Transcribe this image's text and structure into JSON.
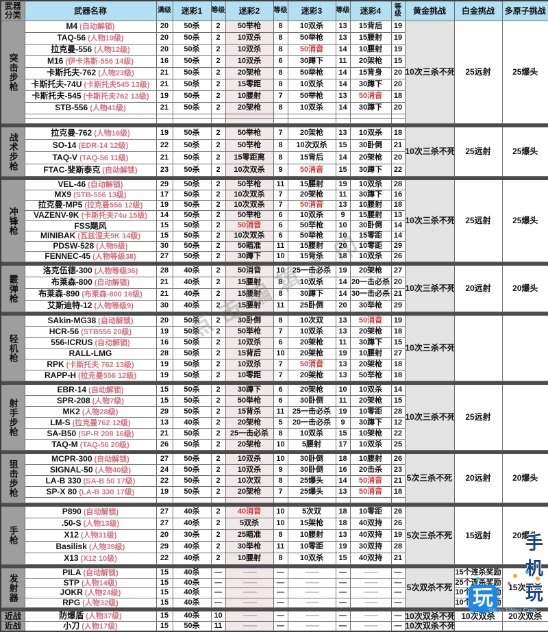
{
  "header": {
    "corner": "武器分类",
    "columns": [
      "武器名称",
      "满级",
      "迷彩1",
      "等级",
      "迷彩2",
      "等级",
      "迷彩3",
      "等级",
      "迷彩4",
      "等级",
      "黄金挑战",
      "白金挑战",
      "多原子挑战"
    ]
  },
  "colors": {
    "header_bg": "#b3dff2",
    "category_bg": "#9e9e9e",
    "gold_col_bg": "#e3e3e3",
    "camo2_col_bg": "#f1e9e9",
    "note_pink": "#d4707e",
    "red_camo": "#d93636",
    "separator": "#4c4c4c"
  },
  "watermark": {
    "diagonal": "点击编辑水印",
    "logo_char": "玩",
    "brand": "手机玩",
    "site": "ShouJiWan.Com"
  },
  "sections": [
    {
      "category": "突击步枪",
      "gold": "10次三杀不死",
      "platinum": "25远射",
      "poly": "25爆头",
      "rows": [
        {
          "name": "M4",
          "note": "(自动解锁)",
          "max": "20",
          "c1": "50杀",
          "l1": "2",
          "c2": "50举枪",
          "l2": "8",
          "c3": "10双杀",
          "l3": "13",
          "c4": "15背后",
          "l4": "19"
        },
        {
          "name": "TAQ-56",
          "note": "(人物19级)",
          "max": "20",
          "c1": "50杀",
          "l1": "2",
          "c2": "10双杀",
          "l2": "8",
          "c3": "50举枪",
          "l3": "13",
          "c4": "15腰射",
          "l4": "19"
        },
        {
          "name": "拉克曼-556",
          "note": "(人物12级)",
          "max": "20",
          "c1": "50杀",
          "l1": "2",
          "c2": "10双杀",
          "l2": "8",
          "c3": "50消音",
          "l3": "14",
          "c4": "10腰射",
          "l4": "19",
          "red": [
            "c3"
          ]
        },
        {
          "name": "M16",
          "note": "(伊卡洛斯-556 14级)",
          "max": "16",
          "c1": "50杀",
          "l1": "2",
          "c2": "10双杀",
          "l2": "6",
          "c3": "30蹲下",
          "l3": "11",
          "c4": "20架枪",
          "l4": "15"
        },
        {
          "name": "卡斯托夫-762",
          "note": "(人物23级)",
          "max": "21",
          "c1": "50杀",
          "l1": "2",
          "c2": "20架枪",
          "l2": "8",
          "c3": "50举枪",
          "l3": "14",
          "c4": "15背身",
          "l4": "20"
        },
        {
          "name": "卡斯托夫-74U",
          "note": "(卡斯托夫545 13级)",
          "max": "21",
          "c1": "50杀",
          "l1": "2",
          "c2": "15零距",
          "l2": "8",
          "c3": "10双杀",
          "l3": "14",
          "c4": "30蹲下",
          "l4": "20"
        },
        {
          "name": "卡斯托夫-545",
          "note": "(卡斯托夫762 13级)",
          "max": "19",
          "c1": "50杀",
          "l1": "2",
          "c2": "10腰射",
          "l2": "7",
          "c3": "50举枪",
          "l3": "13",
          "c4": "50消音",
          "l4": "18",
          "red": [
            "c4"
          ]
        },
        {
          "name": "STB-556",
          "note": "(人物41级)",
          "max": "21",
          "c1": "50杀",
          "l1": "2",
          "c2": "20架枪",
          "l2": "8",
          "c3": "10双杀",
          "l3": "14",
          "c4": "30蹲下",
          "l4": "20"
        },
        {
          "empty": true
        },
        {
          "empty": true
        }
      ]
    },
    {
      "category": "战术步枪",
      "gold": "10次三杀不死",
      "platinum": "25远射",
      "poly": "25爆头",
      "rows": [
        {
          "name": "拉克曼-762",
          "note": "(人物16级)",
          "max": "19",
          "c1": "50杀",
          "l1": "2",
          "c2": "50举枪",
          "l2": "7",
          "c3": "20架枪",
          "l3": "13",
          "c4": "10双杀",
          "l4": "18"
        },
        {
          "name": "SO-14",
          "note": "(EDR-14 12级)",
          "max": "22",
          "c1": "50杀",
          "l1": "2",
          "c2": "50举枪",
          "l2": "8",
          "c3": "10次双杀",
          "l3": "15",
          "c4": "30卧倒",
          "l4": "21"
        },
        {
          "name": "TAQ-V",
          "note": "(TAQ-56 11级)",
          "max": "21",
          "c1": "50杀",
          "l1": "2",
          "c2": "15零距离",
          "l2": "8",
          "c3": "15背后",
          "l3": "14",
          "c4": "20架枪",
          "l4": "20"
        },
        {
          "name": "FTAC-斐斯泰克",
          "note": "(自动解锁)",
          "max": "23",
          "c1": "50杀",
          "l1": "2",
          "c2": "10次双杀",
          "l2": "9",
          "c3": "50消音",
          "l3": "15",
          "c4": "30蹲下",
          "l4": "22",
          "red": [
            "c3"
          ]
        }
      ]
    },
    {
      "category": "冲锋枪",
      "gold": "10次三杀不死",
      "platinum": "25远射",
      "poly": "25爆头",
      "rows": [
        {
          "name": "VEL-46",
          "note": "(自动解锁)",
          "max": "29",
          "c1": "50杀",
          "l1": "2",
          "c2": "50举枪",
          "l2": "11",
          "c3": "15腰射",
          "l3": "19",
          "c4": "10双杀",
          "l4": "28"
        },
        {
          "name": "MX9",
          "note": "(STB-556 13级)",
          "max": "17",
          "c1": "50杀",
          "l1": "2",
          "c2": "10次双杀",
          "l2": "7",
          "c3": "20架枪",
          "l3": "11",
          "c4": "30蹲下",
          "l4": "16"
        },
        {
          "name": "拉克曼-MP5",
          "note": "(拉克曼556 12级)",
          "max": "19",
          "c1": "50杀",
          "l1": "2",
          "c2": "10次双杀",
          "l2": "7",
          "c3": "50消音",
          "l3": "13",
          "c4": "10腰射",
          "l4": "18",
          "red": [
            "c3"
          ]
        },
        {
          "name": "VAZENV-9K",
          "note": "(卡斯托夫74u 15级)",
          "max": "14",
          "c1": "50杀",
          "l1": "2",
          "c2": "50举枪",
          "l2": "6",
          "c3": "10双杀",
          "l3": "9",
          "c4": "15腰射",
          "l4": "13"
        },
        {
          "name": "FSS飓风",
          "note": "",
          "max": "15",
          "c1": "50杀",
          "l1": "2",
          "c2": "50消音",
          "l2": "6",
          "c3": "50举枪",
          "l3": "10",
          "c4": "30卧倒",
          "l4": "14",
          "red": [
            "c2"
          ]
        },
        {
          "name": "MINIBAK",
          "note": "(瓦兹涅夫9K 14级)",
          "max": "15",
          "c1": "50杀",
          "l1": "2",
          "c2": "10次双杀",
          "l2": "6",
          "c3": "50举枪",
          "l3": "10",
          "c4": "15零距",
          "l4": "14"
        },
        {
          "name": "PDSW-528",
          "note": "(人物5级)",
          "max": "30",
          "c1": "50杀",
          "l1": "2",
          "c2": "50瞄准",
          "l2": "11",
          "c3": "15腰射",
          "l3": "20",
          "c4": "10零距",
          "l4": "29"
        },
        {
          "name": "FENNEC-45",
          "note": "(人物等级38)",
          "max": "27",
          "c1": "50杀",
          "l1": "2",
          "c2": "30蹲下",
          "l2": "10",
          "c3": "15背杀",
          "l3": "18",
          "c4": "10双杀",
          "l4": "26"
        }
      ]
    },
    {
      "category": "霰弹枪",
      "gold": "10次三杀不死",
      "platinum": "20远射",
      "poly": "20爆头",
      "rows": [
        {
          "name": "洛克伍德-300",
          "note": "(人物等级36)",
          "max": "28",
          "c1": "40杀",
          "l1": "2",
          "c2": "50消音",
          "l2": "10",
          "c3": "25一击必杀",
          "l3": "19",
          "c4": "20架枪",
          "l4": "27"
        },
        {
          "name": "布莱森-800",
          "note": "(自动解锁)",
          "max": "21",
          "c1": "40杀",
          "l1": "2",
          "c2": "15腰射",
          "l2": "8",
          "c3": "10双杀",
          "l3": "14",
          "c4": "20一击必杀",
          "l4": "20"
        },
        {
          "name": "布莱森-890",
          "note": "(布莱森-800 16级)",
          "max": "21",
          "c1": "40杀",
          "l1": "2",
          "c2": "15腰射",
          "l2": "8",
          "c3": "30蹲下",
          "l3": "14",
          "c4": "30一击必杀",
          "l4": "21"
        },
        {
          "name": "艾斯迪特-12",
          "note": "(人物等级9)",
          "max": "30",
          "c1": "40杀",
          "l1": "2",
          "c2": "15腰射",
          "l2": "11",
          "c3": "25卧倒",
          "l3": "20",
          "c4": "30举枪",
          "l4": "29"
        }
      ]
    },
    {
      "category": "轻机枪",
      "gold": "10次三杀不死",
      "platinum": "",
      "poly": "",
      "rows": [
        {
          "name": "SAkin-MG38",
          "note": "(自动解锁)",
          "max": "20",
          "c1": "50杀",
          "l1": "2",
          "c2": "30卧倒",
          "l2": "8",
          "c3": "10次双",
          "l3": "13",
          "c4": "50消音",
          "l4": "19",
          "red": [
            "c4"
          ]
        },
        {
          "name": "HCR-56",
          "note": "(STB556 20级)",
          "max": "19",
          "c1": "50杀",
          "l1": "2",
          "c2": "50举枪",
          "l2": "7",
          "c3": "10双杀",
          "l3": "13",
          "c4": "20架枪",
          "l4": "18"
        },
        {
          "name": "556-ICRUS",
          "note": "(自动解锁)",
          "max": "16",
          "c1": "50杀",
          "l1": "2",
          "c2": "10双杀",
          "l2": "6",
          "c3": "20架枪",
          "l3": "11",
          "c4": "30蹲下",
          "l4": "15"
        },
        {
          "name": "RALL-LMG",
          "note": "",
          "max": "28",
          "c1": "50杀",
          "l1": "2",
          "c2": "15背后",
          "l2": "10",
          "c3": "20架枪",
          "l3": "19",
          "c4": "10腰射",
          "l4": "27"
        },
        {
          "name": "RPK",
          "note": "(卡斯托夫 762 13级)",
          "max": "19",
          "c1": "50杀",
          "l1": "2",
          "c2": "10双杀",
          "l2": "7",
          "c3": "50消音",
          "l3": "13",
          "c4": "20架枪",
          "l4": "18",
          "red": [
            "c3"
          ]
        },
        {
          "name": "RAPP-H",
          "note": "(拉克曼556 12级)",
          "max": "19",
          "c1": "50杀",
          "l1": "2",
          "c2": "10零距",
          "l2": "7",
          "c3": "20架枪",
          "l3": "13",
          "c4": "50举枪",
          "l4": "18"
        }
      ]
    },
    {
      "category": "射手步枪",
      "gold": "10次三杀不死",
      "platinum": "25远射",
      "poly": "",
      "rows": [
        {
          "name": "EBR-14",
          "note": "(自动解锁)",
          "max": "15",
          "c1": "50杀",
          "l1": "2",
          "c2": "30蹲下",
          "l2": "6",
          "c3": "20架枪",
          "l3": "10",
          "c4": "10双杀",
          "l4": "14"
        },
        {
          "name": "SPR-208",
          "note": "(人物7级)",
          "max": "15",
          "c1": "50杀",
          "l1": "2",
          "c2": "50举枪",
          "l2": "6",
          "c3": "30卧倒",
          "l3": "11",
          "c4": "20架枪",
          "l4": "15"
        },
        {
          "name": "MK2",
          "note": "(人物28级)",
          "max": "29",
          "c1": "50杀",
          "l1": "2",
          "c2": "15背杀",
          "l2": "11",
          "c3": "25一击必杀",
          "l3": "19",
          "c4": "10零距",
          "l4": "28"
        },
        {
          "name": "LM-S",
          "note": "(拉克曼762 12级)",
          "max": "13",
          "c1": "40杀",
          "l1": "2",
          "c2": "20架枪",
          "l2": "5",
          "c3": "20一击必杀",
          "l3": "9",
          "c4": "30蹲下",
          "l4": "12"
        },
        {
          "name": "SA-B50",
          "note": "(SP-R 208 16级)",
          "max": "21",
          "c1": "50杀",
          "l1": "2",
          "c2": "25一击必杀",
          "l2": "8",
          "c3": "10双杀",
          "l3": "15",
          "c4": "10架枪",
          "l4": "22"
        },
        {
          "name": "TAQ-M",
          "note": "(TAQ-56 20级)",
          "max": "26",
          "c1": "50杀",
          "l1": "2",
          "c2": "20架枪",
          "l2": "10",
          "c3": "5腰射",
          "l3": "17",
          "c4": "10双杀",
          "l4": "25"
        }
      ]
    },
    {
      "category": "狙击步枪",
      "gold": "5次三杀不死",
      "platinum": "20远射",
      "poly": "20爆头",
      "rows": [
        {
          "name": "MCPR-300",
          "note": "(自动解锁)",
          "max": "27",
          "c1": "50杀",
          "l1": "2",
          "c2": "10双杀",
          "l2": "10",
          "c3": "30卧倒",
          "l3": "18",
          "c4": "10腰射",
          "l4": "26"
        },
        {
          "name": "SIGNAL-50",
          "note": "(人物40级)",
          "max": "24",
          "c1": "50杀",
          "l1": "2",
          "c2": "10双杀",
          "l2": "9",
          "c3": "30卧倒",
          "l3": "16",
          "c4": "20击杀",
          "l4": "23"
        },
        {
          "name": "LA-B 330",
          "note": "(SA-B 50 17级)",
          "max": "22",
          "c1": "50杀",
          "l1": "2",
          "c2": "10次双",
          "l2": "8",
          "c3": "25爆头",
          "l3": "14",
          "c4": "50消音",
          "l4": "21",
          "red": [
            "c4"
          ]
        },
        {
          "name": "SP-X 80",
          "note": "(LA-B 330 17级)",
          "max": "19",
          "c1": "50杀",
          "l1": "2",
          "c2": "20架枪",
          "l2": "7",
          "c3": "25爆头",
          "l3": "13",
          "c4": "50消音",
          "l4": "18",
          "red": [
            "c4"
          ]
        },
        {
          "empty": true
        }
      ]
    },
    {
      "category": "手枪",
      "gold": "5次三杀不死",
      "platinum": "15远射",
      "poly": "20爆头",
      "rows": [
        {
          "name": "P890",
          "note": "(自动解锁)",
          "max": "27",
          "c1": "40杀",
          "l1": "2",
          "c2": "40消音",
          "l2": "10",
          "c3": "5次双",
          "l3": "18",
          "c4": "10零距",
          "l4": "26",
          "red": [
            "c2"
          ]
        },
        {
          "name": ".50-S",
          "note": "(人物13级)",
          "max": "27",
          "c1": "40杀",
          "l1": "2",
          "c2": "5双杀",
          "l2": "10",
          "c3": "15架枪",
          "l3": "18",
          "c4": "40双持",
          "l4": "26"
        },
        {
          "name": "X12",
          "note": "(人物31级)",
          "max": "20",
          "c1": "30杀",
          "l1": "2",
          "c2": "25瞄准",
          "l2": "8",
          "c3": "10腰射",
          "l3": "13",
          "c4": "40双持",
          "l4": "19"
        },
        {
          "name": "Basilisk",
          "note": "(人物39级)",
          "max": "29",
          "c1": "40杀",
          "l1": "2",
          "c2": "30举枪",
          "l2": "11",
          "c3": "10零距",
          "l3": "19",
          "c4": "30双持",
          "l4": "28"
        },
        {
          "name": "X13",
          "note": "(X12 10级)",
          "max": "22",
          "c1": "40杀",
          "l1": "2",
          "c2": "10腰射",
          "l2": "8",
          "c3": "10双杀",
          "l3": "15",
          "c4": "40双持",
          "l4": "21"
        }
      ]
    },
    {
      "category": "发射器",
      "gold": "5次双杀不死",
      "poly": "15次双杀",
      "platinum_per_row": [
        "15个连杀奖励",
        "25个连杀奖励",
        "10个连杀奖励",
        "10个连杀奖励"
      ],
      "rows": [
        {
          "name": "PILA",
          "note": "(自动解锁)",
          "max": "15",
          "c1": "40杀",
          "l1": "—",
          "c2": "——",
          "l2": "—",
          "c3": "——",
          "l3": "—",
          "c4": "——",
          "l4": "—"
        },
        {
          "name": "STP",
          "note": "(人物14级)",
          "max": "15",
          "c1": "40杀",
          "l1": "—",
          "c2": "——",
          "l2": "—",
          "c3": "——",
          "l3": "—",
          "c4": "——",
          "l4": "—"
        },
        {
          "name": "JOKR",
          "note": "(人物24级)",
          "max": "15",
          "c1": "40杀",
          "l1": "—",
          "c2": "——",
          "l2": "—",
          "c3": "——",
          "l3": "—",
          "c4": "——",
          "l4": "—"
        },
        {
          "name": "RPG",
          "note": "(人物32级)",
          "max": "15",
          "c1": "40杀",
          "l1": "—",
          "c2": "——",
          "l2": "—",
          "c3": "——",
          "l3": "—",
          "c4": "——",
          "l4": "—"
        }
      ]
    },
    {
      "category": "近战",
      "per_row_category": true,
      "rows": [
        {
          "cat": "近战",
          "name": "防爆盾",
          "note": "(人物37级)",
          "max": "15",
          "c1": "40杀",
          "l1": "10",
          "c2": "——",
          "l2": "—",
          "c3": "——",
          "l3": "—",
          "c4": "——",
          "l4": "—",
          "gold": "10次双杀不死",
          "plat": "10次双杀",
          "poly": "20次双杀"
        },
        {
          "cat": "近战",
          "name": "小刀",
          "note": "(人物17级)",
          "max": "15",
          "c1": "50杀",
          "l1": "11",
          "c2": "——",
          "l2": "—",
          "c3": "——",
          "l3": "—",
          "c4": "——",
          "l4": "—",
          "gold": "10次双杀不死",
          "plat": "",
          "poly": ""
        }
      ]
    }
  ]
}
